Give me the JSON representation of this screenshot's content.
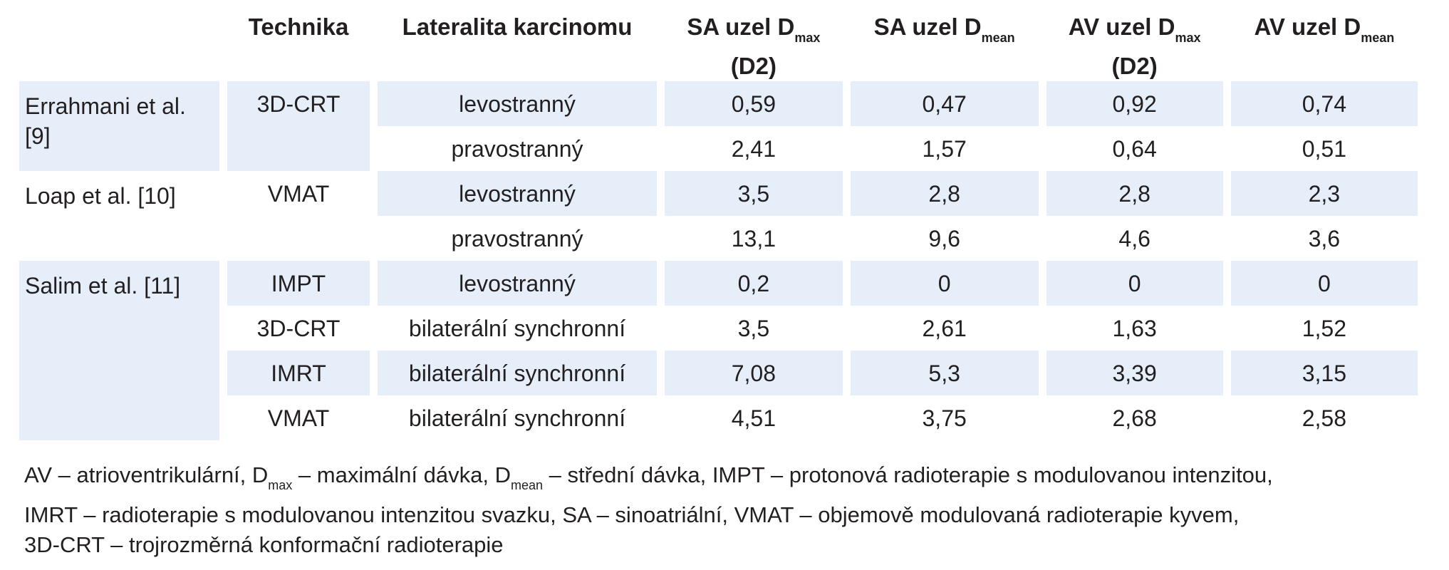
{
  "headers": {
    "author": "",
    "technique": "Technika",
    "laterality": "Lateralita karcinomu",
    "sa_dmax_main": "SA uzel D",
    "sa_dmax_sub": "max",
    "sa_dmax_extra": "(D2)",
    "sa_dmean_main": "SA uzel D",
    "sa_dmean_sub": "mean",
    "av_dmax_main": "AV uzel D",
    "av_dmax_sub": "max",
    "av_dmax_extra": "(D2)",
    "av_dmean_main": "AV uzel D",
    "av_dmean_sub": "mean"
  },
  "rows": [
    {
      "author": "Errahmani et al. [9]",
      "technique": "3D-CRT",
      "laterality": "levostranný",
      "sa_dmax": "0,59",
      "sa_dmean": "0,47",
      "av_dmax": "0,92",
      "av_dmean": "0,74"
    },
    {
      "laterality": "pravostranný",
      "sa_dmax": "2,41",
      "sa_dmean": "1,57",
      "av_dmax": "0,64",
      "av_dmean": "0,51"
    },
    {
      "author": "Loap et al. [10]",
      "technique": "VMAT",
      "laterality": "levostranný",
      "sa_dmax": "3,5",
      "sa_dmean": "2,8",
      "av_dmax": "2,8",
      "av_dmean": "2,3"
    },
    {
      "laterality": "pravostranný",
      "sa_dmax": "13,1",
      "sa_dmean": "9,6",
      "av_dmax": "4,6",
      "av_dmean": "3,6"
    },
    {
      "author": "Salim et al. [11]",
      "technique": "IMPT",
      "laterality": "levostranný",
      "sa_dmax": "0,2",
      "sa_dmean": "0",
      "av_dmax": "0",
      "av_dmean": "0"
    },
    {
      "technique": "3D-CRT",
      "laterality": "bilaterální synchronní",
      "sa_dmax": "3,5",
      "sa_dmean": "2,61",
      "av_dmax": "1,63",
      "av_dmean": "1,52"
    },
    {
      "technique": "IMRT",
      "laterality": "bilaterální synchronní",
      "sa_dmax": "7,08",
      "sa_dmean": "5,3",
      "av_dmax": "3,39",
      "av_dmean": "3,15"
    },
    {
      "technique": "VMAT",
      "laterality": "bilaterální synchronní",
      "sa_dmax": "4,51",
      "sa_dmean": "3,75",
      "av_dmax": "2,68",
      "av_dmean": "2,58"
    }
  ],
  "footnote": {
    "p1": "AV – atrioventrikulární, D",
    "s1": "max",
    "p2": " – maximální dávka, D",
    "s2": "mean",
    "p3": " – střední dávka, IMPT – protonová radioterapie s modulovanou intenzitou,",
    "line2": "IMRT – radioterapie s modulovanou intenzitou svazku, SA – sinoatriální, VMAT – objemově modulovaná radioterapie kyvem,",
    "line3": "3D-CRT – trojrozměrná konformační radioterapie"
  }
}
